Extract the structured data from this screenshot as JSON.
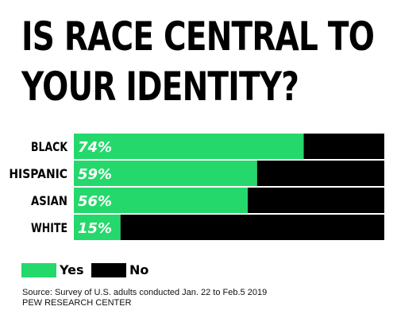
{
  "title": {
    "line1": "IS RACE CENTRAL TO",
    "line2": "YOUR IDENTITY?"
  },
  "colors": {
    "yes": "#25d86c",
    "no": "#000000",
    "label_on_bar": "#ffffff"
  },
  "legend": {
    "yes_label": "Yes",
    "no_label": "No"
  },
  "source": {
    "line1": "Source: Survey of U.S. adults conducted Jan. 22 to Feb.5 2019",
    "line2": "PEW RESEARCH CENTER"
  },
  "chart_data": {
    "type": "bar",
    "orientation": "horizontal",
    "stacked": true,
    "title": "IS RACE CENTRAL TO YOUR IDENTITY?",
    "categories": [
      "BLACK",
      "HISPANIC",
      "ASIAN",
      "WHITE"
    ],
    "series": [
      {
        "name": "Yes",
        "values": [
          74,
          59,
          56,
          15
        ]
      },
      {
        "name": "No",
        "values": [
          26,
          41,
          44,
          85
        ]
      }
    ],
    "data_labels": [
      "74%",
      "59%",
      "56%",
      "15%"
    ],
    "xlim": [
      0,
      100
    ],
    "grid": false,
    "legend_position": "bottom-left"
  }
}
